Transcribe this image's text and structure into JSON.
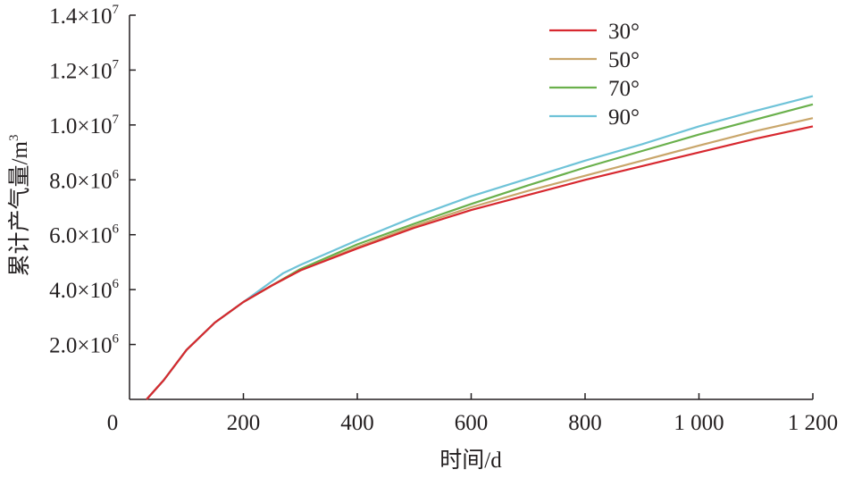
{
  "chart_data": {
    "type": "line",
    "xlabel": "时间/d",
    "ylabel": "累计产气量/m",
    "ylabel_sup": "3",
    "xlim": [
      0,
      1200
    ],
    "ylim": [
      0,
      14000000
    ],
    "x_ticks": [
      {
        "value": 0,
        "label": "0"
      },
      {
        "value": 200,
        "label": "200"
      },
      {
        "value": 400,
        "label": "400"
      },
      {
        "value": 600,
        "label": "600"
      },
      {
        "value": 800,
        "label": "800"
      },
      {
        "value": 1000,
        "label": "1 000"
      },
      {
        "value": 1200,
        "label": "1 200"
      }
    ],
    "y_ticks": [
      {
        "value": 2000000,
        "mantissa": "2.0×10",
        "exp": "6"
      },
      {
        "value": 4000000,
        "mantissa": "4.0×10",
        "exp": "6"
      },
      {
        "value": 6000000,
        "mantissa": "6.0×10",
        "exp": "6"
      },
      {
        "value": 8000000,
        "mantissa": "8.0×10",
        "exp": "6"
      },
      {
        "value": 10000000,
        "mantissa": "1.0×10",
        "exp": "7"
      },
      {
        "value": 12000000,
        "mantissa": "1.2×10",
        "exp": "7"
      },
      {
        "value": 14000000,
        "mantissa": "1.4×10",
        "exp": "7"
      }
    ],
    "grid": false,
    "legend": "top-right",
    "series": [
      {
        "name": "30°",
        "color": "#d7282f",
        "x": [
          30,
          60,
          100,
          150,
          200,
          250,
          300,
          400,
          500,
          600,
          700,
          800,
          900,
          1000,
          1100,
          1200
        ],
        "y": [
          0,
          700000,
          1800000,
          2800000,
          3550000,
          4150000,
          4700000,
          5500000,
          6250000,
          6900000,
          7450000,
          8000000,
          8500000,
          9000000,
          9500000,
          9950000
        ]
      },
      {
        "name": "50°",
        "color": "#c9a66b",
        "x": [
          30,
          60,
          100,
          150,
          200,
          250,
          300,
          400,
          500,
          600,
          700,
          800,
          900,
          1000,
          1100,
          1200
        ],
        "y": [
          0,
          700000,
          1800000,
          2800000,
          3550000,
          4150000,
          4700000,
          5550000,
          6320000,
          7000000,
          7600000,
          8150000,
          8700000,
          9250000,
          9780000,
          10250000
        ]
      },
      {
        "name": "70°",
        "color": "#6ab04c",
        "x": [
          30,
          60,
          100,
          150,
          200,
          250,
          300,
          400,
          500,
          600,
          700,
          800,
          900,
          1000,
          1100,
          1200
        ],
        "y": [
          0,
          700000,
          1800000,
          2800000,
          3550000,
          4150000,
          4750000,
          5650000,
          6400000,
          7120000,
          7800000,
          8450000,
          9050000,
          9650000,
          10200000,
          10750000
        ]
      },
      {
        "name": "90°",
        "color": "#6fc3d8",
        "x": [
          30,
          60,
          100,
          150,
          200,
          250,
          270,
          300,
          400,
          500,
          600,
          700,
          800,
          900,
          1000,
          1100,
          1200
        ],
        "y": [
          0,
          700000,
          1800000,
          2800000,
          3550000,
          4300000,
          4600000,
          4900000,
          5800000,
          6650000,
          7400000,
          8050000,
          8700000,
          9300000,
          9950000,
          10520000,
          11050000
        ]
      }
    ]
  }
}
